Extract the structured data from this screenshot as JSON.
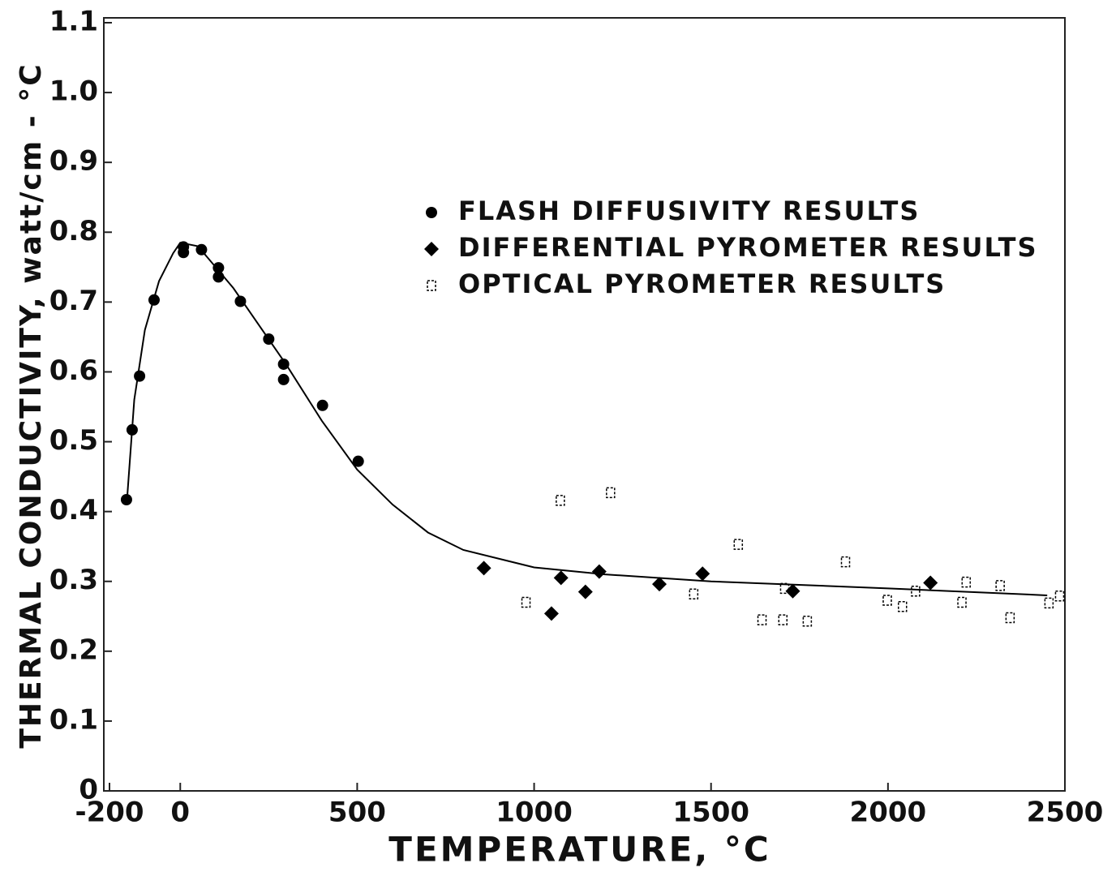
{
  "chart_data": {
    "type": "scatter",
    "xlabel": "TEMPERATURE, °C",
    "ylabel": "THERMAL CONDUCTIVITY, watt/cm - °C",
    "xlim": [
      -200,
      2500
    ],
    "xticks": [
      -200,
      0,
      500,
      1000,
      1500,
      2000,
      2500
    ],
    "ylim": [
      0,
      1.1
    ],
    "yticks": [
      0,
      0.1,
      0.2,
      0.3,
      0.4,
      0.5,
      0.6,
      0.7,
      0.8,
      0.9,
      {
        "value": 1,
        "label": "1.0"
      },
      1.1
    ],
    "series": [
      {
        "name": "FLASH DIFFUSIVITY RESULTS",
        "marker": "circle",
        "color": "#000000",
        "x": [
          -152,
          -136,
          -115,
          -74,
          9,
          9,
          60,
          108,
          108,
          170,
          250,
          292,
          292,
          402,
          503
        ],
        "values": [
          0.417,
          0.517,
          0.594,
          0.703,
          0.779,
          0.771,
          0.775,
          0.749,
          0.736,
          0.701,
          0.647,
          0.611,
          0.589,
          0.552,
          0.472
        ]
      },
      {
        "name": "DIFFERENTIAL PYROMETER RESULTS",
        "marker": "diamond",
        "color": "#000000",
        "x": [
          858,
          1049,
          1076,
          1145,
          1184,
          1354,
          1476,
          1731,
          2120
        ],
        "values": [
          0.319,
          0.254,
          0.305,
          0.285,
          0.314,
          0.296,
          0.311,
          0.286,
          0.298
        ]
      },
      {
        "name": "OPTICAL PYROMETER RESULTS",
        "marker": "open-square",
        "color": "#000000",
        "x": [
          977,
          1074,
          1216,
          1451,
          1577,
          1644,
          1703,
          1708,
          1772,
          1880,
          1998,
          2041,
          2078,
          2209,
          2221,
          2317,
          2345,
          2455,
          2485
        ],
        "values": [
          0.27,
          0.416,
          0.427,
          0.282,
          0.353,
          0.245,
          0.245,
          0.29,
          0.243,
          0.328,
          0.273,
          0.264,
          0.286,
          0.27,
          0.299,
          0.294,
          0.248,
          0.269,
          0.279
        ]
      }
    ],
    "curve": {
      "color": "#000000",
      "x": [
        -150,
        -130,
        -100,
        -60,
        -20,
        0,
        50,
        150,
        300,
        400,
        500,
        600,
        700,
        800,
        1000,
        1200,
        1500,
        2000,
        2450
      ],
      "values": [
        0.42,
        0.56,
        0.66,
        0.73,
        0.77,
        0.785,
        0.78,
        0.72,
        0.61,
        0.53,
        0.46,
        0.41,
        0.37,
        0.345,
        0.32,
        0.31,
        0.3,
        0.29,
        0.28
      ]
    }
  }
}
